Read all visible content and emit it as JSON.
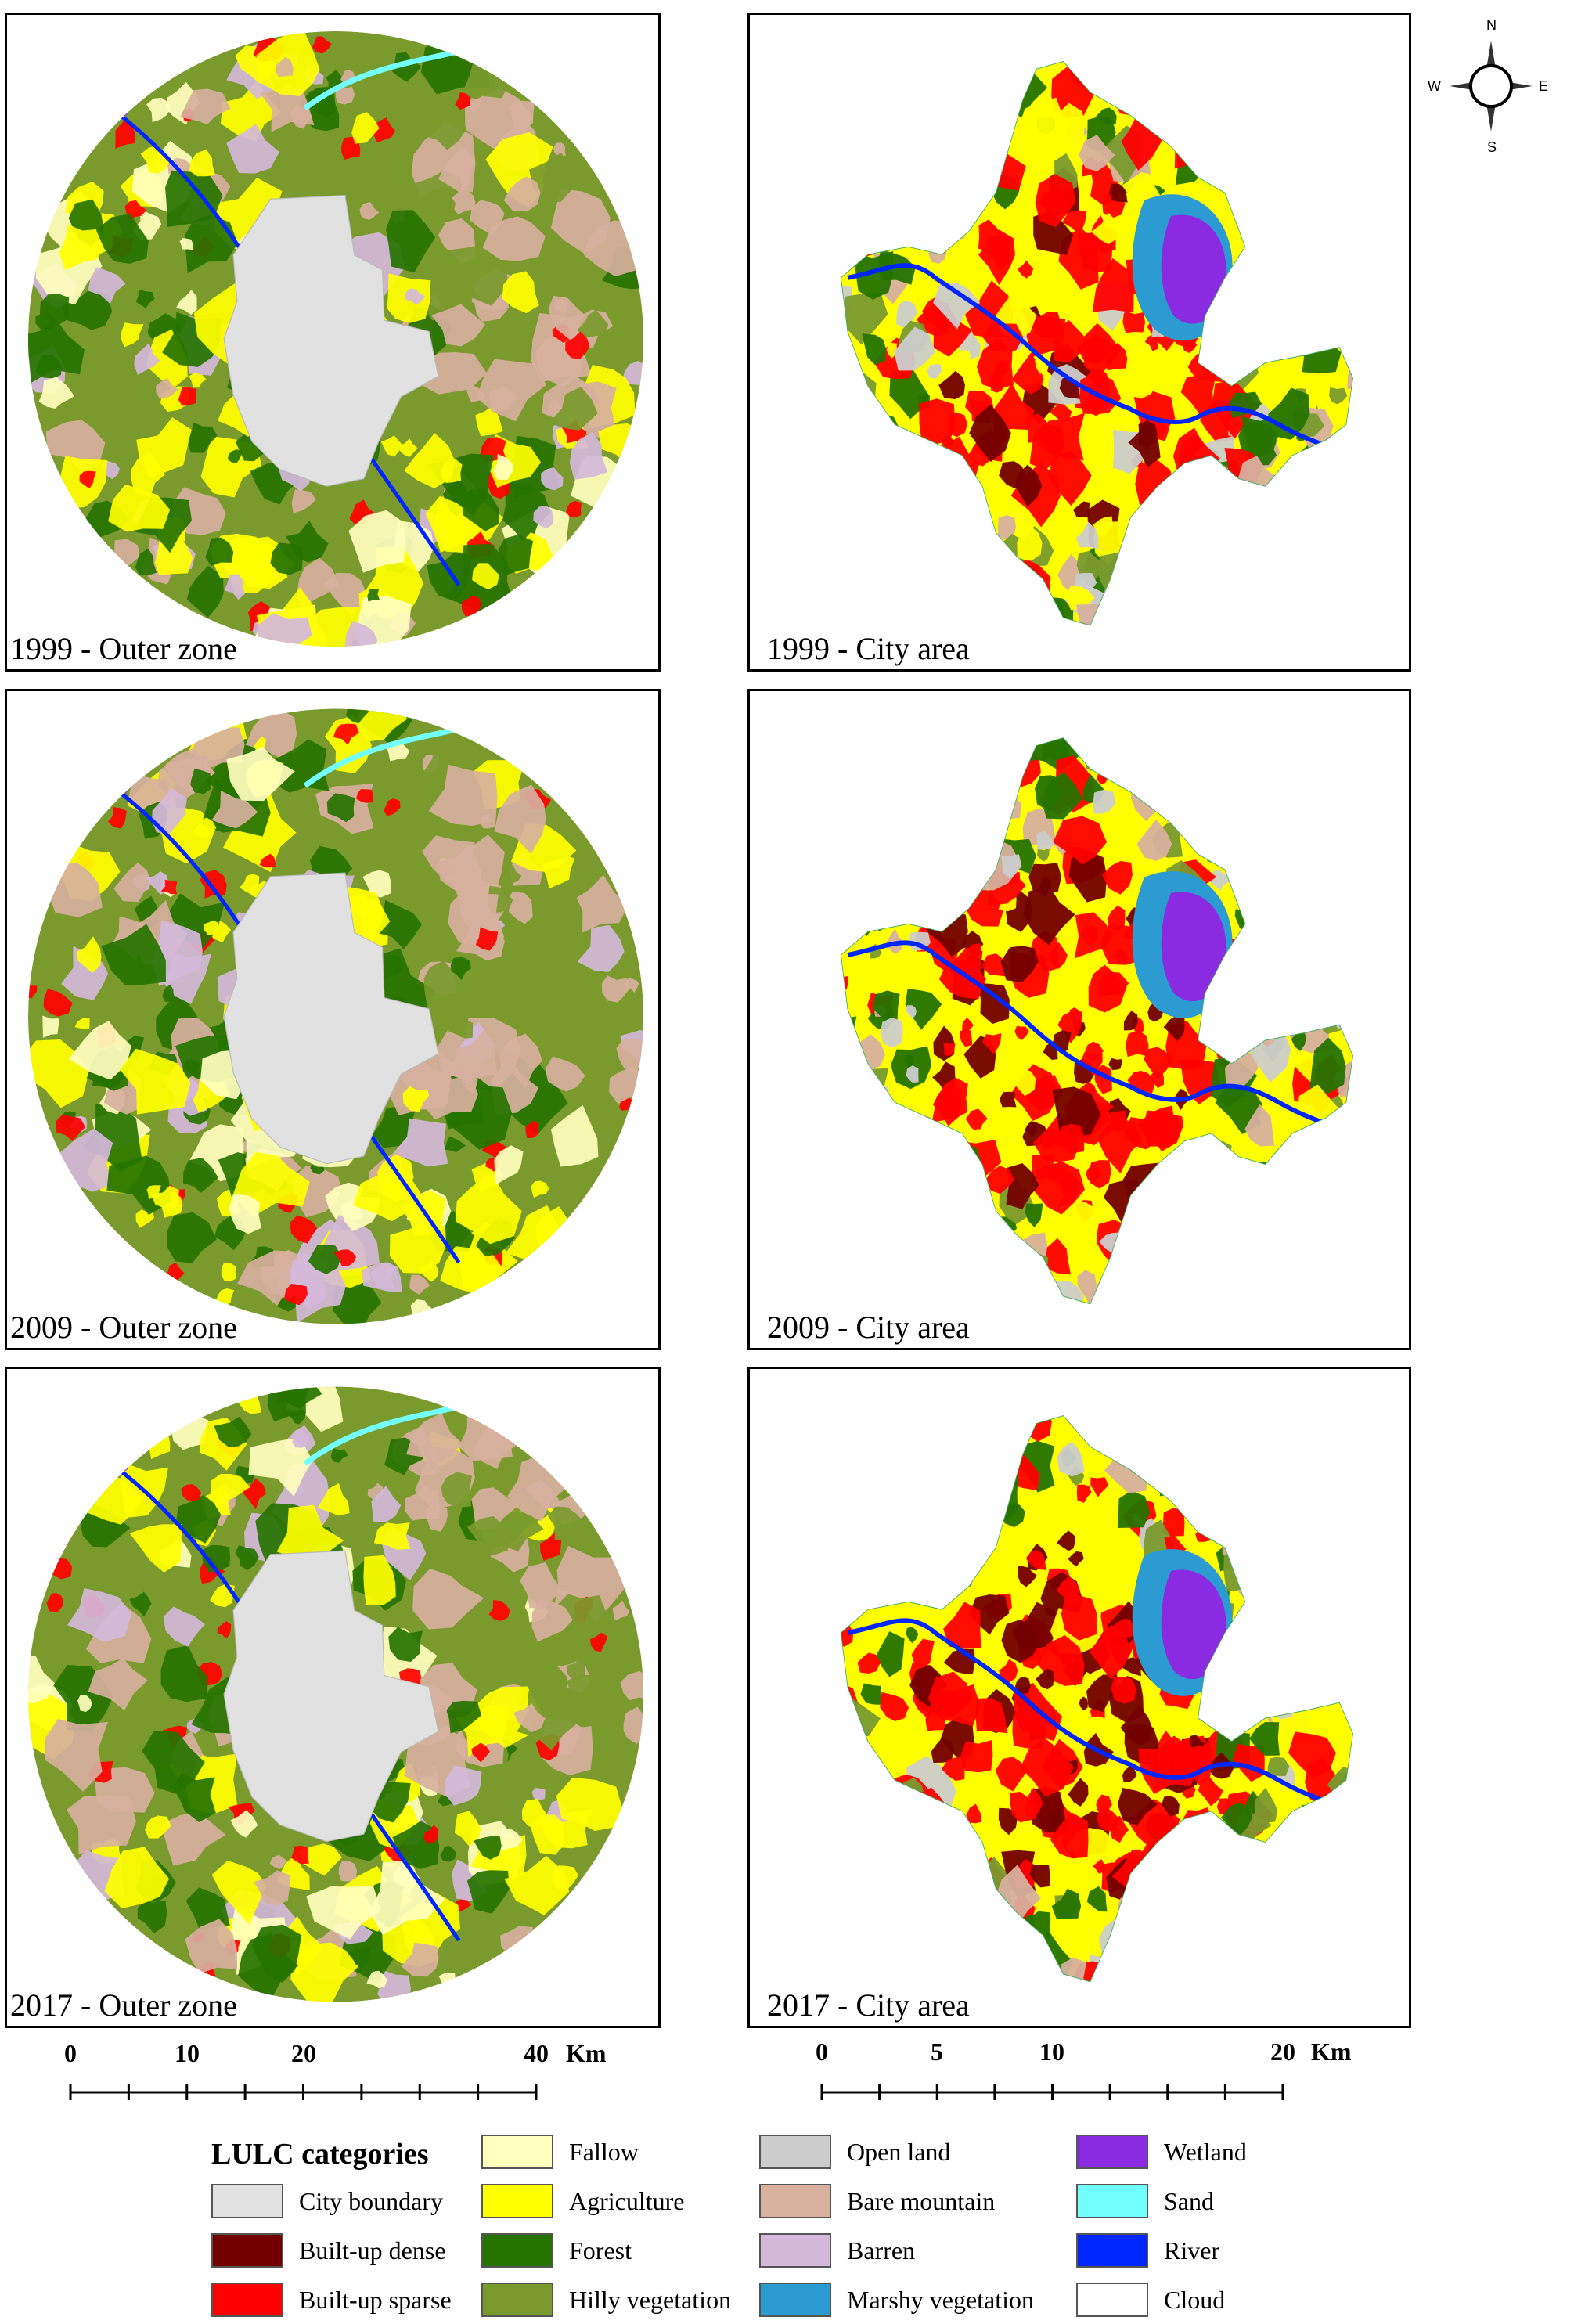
{
  "compass": {
    "north": "N",
    "south": "S",
    "east": "E",
    "west": "W"
  },
  "panels": [
    {
      "id": "outer-1999",
      "label": "1999 - Outer zone",
      "kind": "outer",
      "year": "1999"
    },
    {
      "id": "city-1999",
      "label": "1999 - City area",
      "kind": "city",
      "year": "1999"
    },
    {
      "id": "outer-2009",
      "label": "2009 - Outer zone",
      "kind": "outer",
      "year": "2009"
    },
    {
      "id": "city-2009",
      "label": "2009 - City area",
      "kind": "city",
      "year": "2009"
    },
    {
      "id": "outer-2017",
      "label": "2017 - Outer zone",
      "kind": "outer",
      "year": "2017"
    },
    {
      "id": "city-2017",
      "label": "2017 - City area",
      "kind": "city",
      "year": "2017"
    }
  ],
  "scalebars": {
    "outer": {
      "ticks": [
        "0",
        "10",
        "20",
        "40"
      ],
      "unit": "Km"
    },
    "city": {
      "ticks": [
        "0",
        "5",
        "10",
        "20"
      ],
      "unit": "Km"
    }
  },
  "legend": {
    "title": "LULC categories",
    "items": [
      {
        "label": "City boundary",
        "color": "#e1e1e1"
      },
      {
        "label": "Built-up dense",
        "color": "#730000"
      },
      {
        "label": "Built-up sparse",
        "color": "#ff0000"
      },
      {
        "label": "Fallow",
        "color": "#ffffbe"
      },
      {
        "label": "Agriculture",
        "color": "#ffff00"
      },
      {
        "label": "Forest",
        "color": "#267300"
      },
      {
        "label": "Hilly vegetation",
        "color": "#7a9a2e"
      },
      {
        "label": "Open land",
        "color": "#cccccc"
      },
      {
        "label": "Bare mountain",
        "color": "#d7b09e"
      },
      {
        "label": "Barren",
        "color": "#d4b9da"
      },
      {
        "label": "Marshy vegetation",
        "color": "#2b9bd1"
      },
      {
        "label": "Wetland",
        "color": "#8a2be2"
      },
      {
        "label": "Sand",
        "color": "#73ffff"
      },
      {
        "label": "River",
        "color": "#0026ff"
      },
      {
        "label": "Cloud",
        "color": "#ffffff"
      }
    ]
  }
}
